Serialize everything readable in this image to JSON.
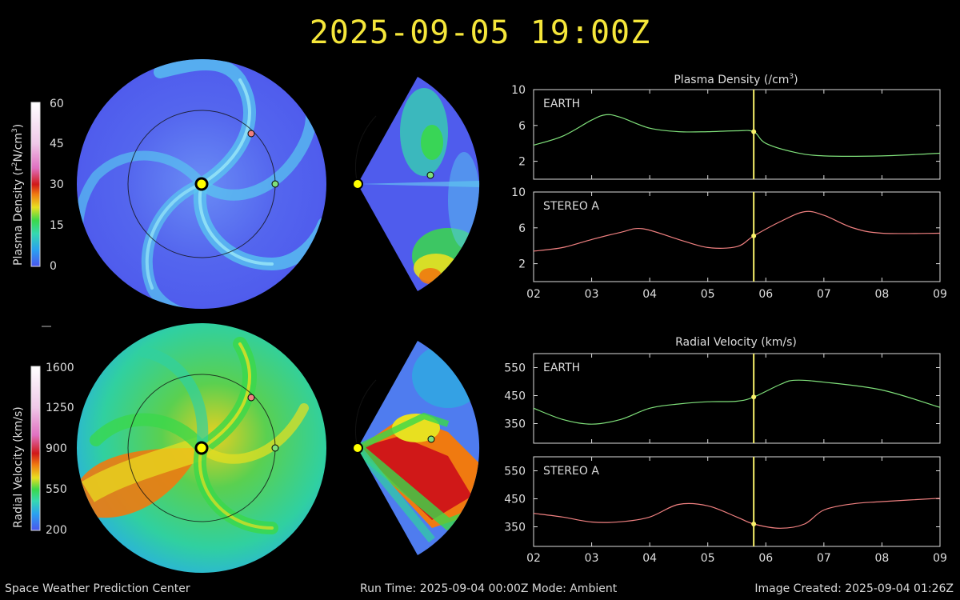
{
  "header": {
    "datetime": "2025-09-05 19:00Z"
  },
  "footer": {
    "center_name": "Space Weather Prediction Center",
    "run_info": "Run Time: 2025-09-04 00:00Z  Mode: Ambient",
    "created": "Image Created: 2025-09-04 01:26Z"
  },
  "colorbars": {
    "density": {
      "label_main": "Plasma Density (r",
      "label_sup": "2",
      "label_rest": "N/cm",
      "label_sup2": "3",
      "label_close": ")",
      "ticks": [
        "60",
        "45",
        "30",
        "15",
        "0"
      ]
    },
    "velocity": {
      "label": "Radial Velocity (km/s)",
      "ticks": [
        "1600",
        "1250",
        "900",
        "550",
        "200"
      ]
    }
  },
  "colors": {
    "title": "#f5e63a",
    "earth": "#7fe07a",
    "stereo_a": "#f08080",
    "time_marker": "#f7f06a",
    "sun": "#ffff00"
  },
  "chart_data": [
    {
      "type": "line",
      "title": "Plasma Density (/cm",
      "title_sup": "3",
      "title_close": ")",
      "x_ticks": [
        "02",
        "03",
        "04",
        "05",
        "06",
        "07",
        "08",
        "09"
      ],
      "xlim": [
        "2025-09-02",
        "2025-09-09"
      ],
      "current_time": "2025-09-05 19:00",
      "panels": [
        {
          "name": "EARTH",
          "color": "#7fe07a",
          "ylim": [
            0,
            10
          ],
          "y_ticks": [
            10,
            6,
            2
          ],
          "x": [
            "2025-09-02 00:00",
            "2025-09-02 12:00",
            "2025-09-03 00:00",
            "2025-09-03 06:00",
            "2025-09-03 12:00",
            "2025-09-04 00:00",
            "2025-09-04 12:00",
            "2025-09-05 00:00",
            "2025-09-05 12:00",
            "2025-09-05 19:00",
            "2025-09-06 00:00",
            "2025-09-06 12:00",
            "2025-09-07 00:00",
            "2025-09-08 00:00",
            "2025-09-09 00:00"
          ],
          "y": [
            3.8,
            4.8,
            6.6,
            7.2,
            6.9,
            5.7,
            5.3,
            5.3,
            5.4,
            5.3,
            4.0,
            3.0,
            2.6,
            2.6,
            2.9
          ]
        },
        {
          "name": "STEREO A",
          "color": "#f08080",
          "ylim": [
            0,
            10
          ],
          "y_ticks": [
            10,
            6,
            2
          ],
          "x": [
            "2025-09-02 00:00",
            "2025-09-02 12:00",
            "2025-09-03 00:00",
            "2025-09-03 12:00",
            "2025-09-03 21:00",
            "2025-09-04 12:00",
            "2025-09-05 00:00",
            "2025-09-05 12:00",
            "2025-09-05 19:00",
            "2025-09-06 06:00",
            "2025-09-06 16:00",
            "2025-09-07 00:00",
            "2025-09-07 12:00",
            "2025-09-08 00:00",
            "2025-09-09 00:00"
          ],
          "y": [
            3.4,
            3.8,
            4.7,
            5.5,
            5.9,
            4.7,
            3.8,
            3.9,
            5.1,
            6.7,
            7.8,
            7.4,
            6.0,
            5.4,
            5.4
          ]
        }
      ]
    },
    {
      "type": "line",
      "title": "Radial Velocity (km/s)",
      "x_ticks": [
        "02",
        "03",
        "04",
        "05",
        "06",
        "07",
        "08",
        "09"
      ],
      "xlim": [
        "2025-09-02",
        "2025-09-09"
      ],
      "current_time": "2025-09-05 19:00",
      "panels": [
        {
          "name": "EARTH",
          "color": "#7fe07a",
          "ylim": [
            280,
            600
          ],
          "y_ticks": [
            550,
            450,
            350
          ],
          "x": [
            "2025-09-02 00:00",
            "2025-09-02 12:00",
            "2025-09-03 00:00",
            "2025-09-03 12:00",
            "2025-09-04 00:00",
            "2025-09-04 12:00",
            "2025-09-05 00:00",
            "2025-09-05 12:00",
            "2025-09-05 19:00",
            "2025-09-06 06:00",
            "2025-09-06 12:00",
            "2025-09-07 00:00",
            "2025-09-08 00:00",
            "2025-09-09 00:00"
          ],
          "y": [
            405,
            365,
            348,
            365,
            405,
            420,
            428,
            430,
            445,
            490,
            505,
            498,
            470,
            408
          ]
        },
        {
          "name": "STEREO A",
          "color": "#f08080",
          "ylim": [
            280,
            600
          ],
          "y_ticks": [
            550,
            450,
            350
          ],
          "x": [
            "2025-09-02 00:00",
            "2025-09-02 12:00",
            "2025-09-03 00:00",
            "2025-09-03 12:00",
            "2025-09-04 00:00",
            "2025-09-04 12:00",
            "2025-09-05 00:00",
            "2025-09-05 12:00",
            "2025-09-05 19:00",
            "2025-09-06 06:00",
            "2025-09-06 16:00",
            "2025-09-07 00:00",
            "2025-09-07 12:00",
            "2025-09-08 00:00",
            "2025-09-09 00:00"
          ],
          "y": [
            398,
            385,
            367,
            368,
            385,
            430,
            425,
            385,
            360,
            345,
            360,
            410,
            432,
            440,
            452
          ]
        }
      ]
    }
  ]
}
